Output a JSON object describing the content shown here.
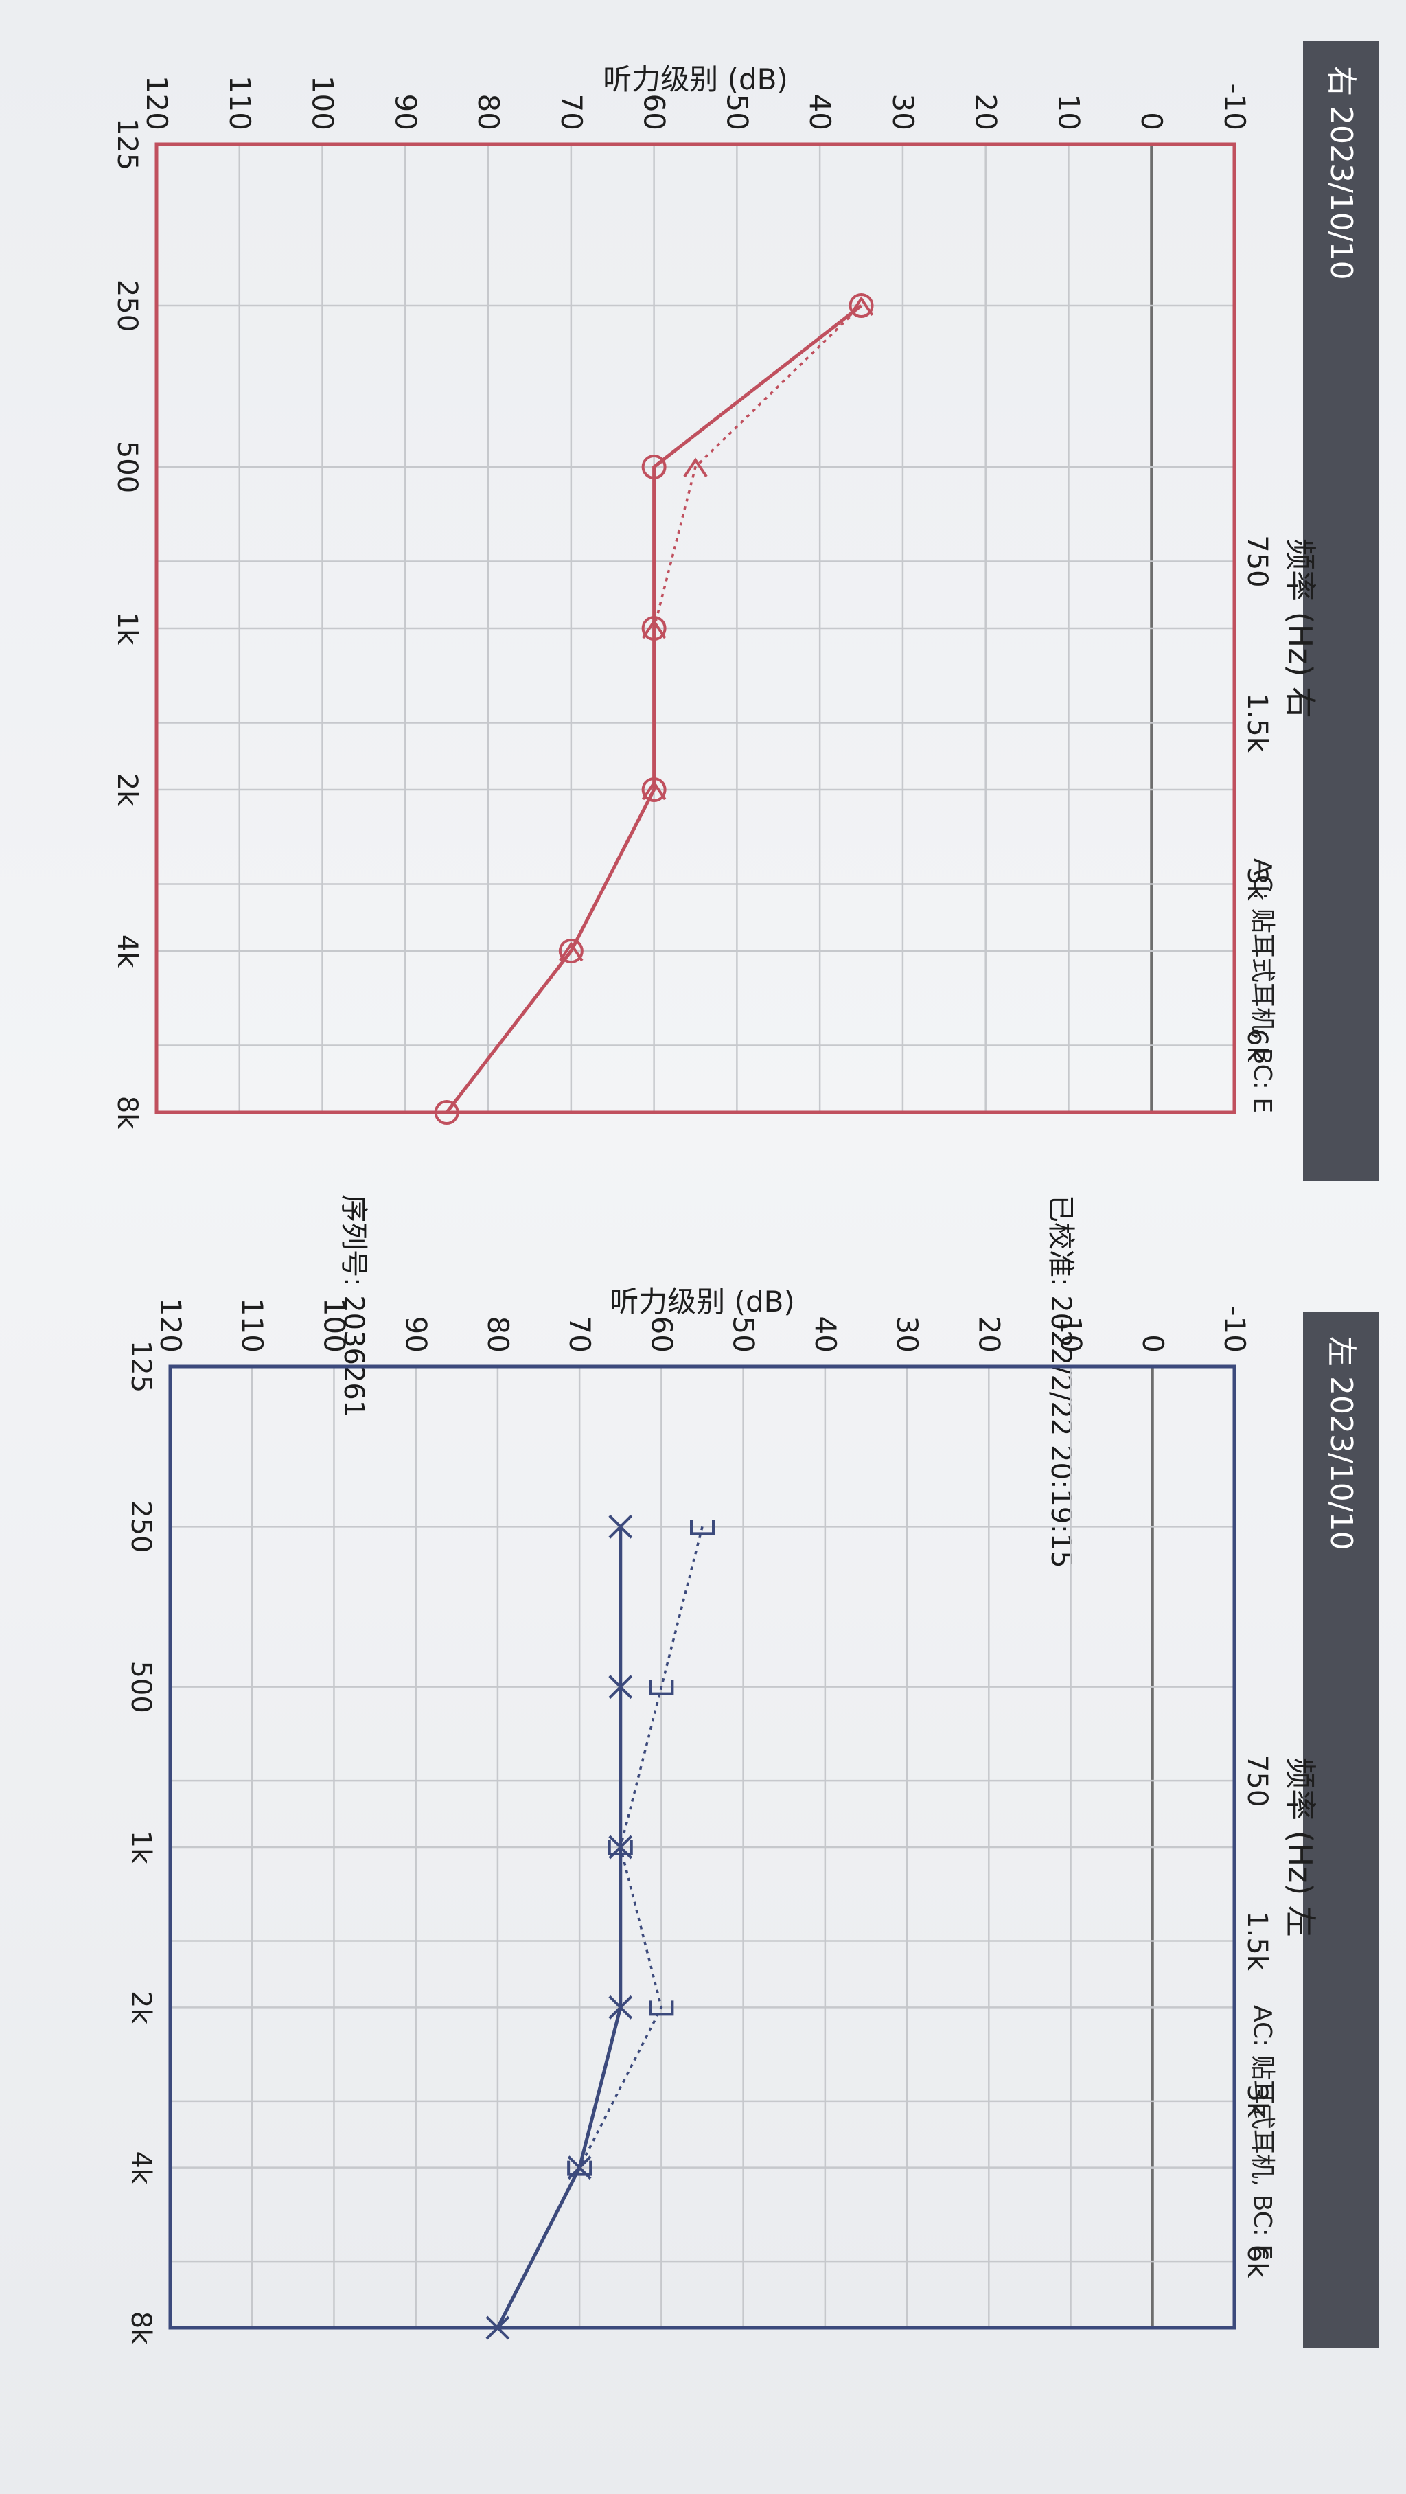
{
  "right_panel": {
    "header": "右 2023/10/10",
    "ac_note": "AC: 贴耳式耳机, BC: E",
    "calibrated": "已校准: 2022/2/22 20:19:15",
    "serial": "序列号: 2036261"
  },
  "left_panel": {
    "header": "左 2023/10/10",
    "ac_note": "AC: 贴耳式耳机, BC: E"
  },
  "colors": {
    "right_ear": "#c0505e",
    "left_ear": "#3c4a7c",
    "grid": "#c6c8cc",
    "header_bg": "#4c4f58"
  },
  "chart_data": [
    {
      "type": "line",
      "ear": "right",
      "ylabel": "听力级别 (dB)",
      "xlabel": "频率 (Hz) 右",
      "x_ticks_top": [
        "125",
        "250",
        "500",
        "1k",
        "2k",
        "4k",
        "8k"
      ],
      "x_ticks_bottom": [
        "750",
        "1.5k",
        "3k",
        "6k"
      ],
      "y_ticks": [
        "-10",
        "0",
        "10",
        "20",
        "30",
        "40",
        "50",
        "60",
        "70",
        "80",
        "90",
        "100",
        "110",
        "120"
      ],
      "ylim": [
        120,
        -10
      ],
      "y_reversed": true,
      "grid": true,
      "series": [
        {
          "marker": "circle",
          "line": "solid",
          "x": [
            "250",
            "500",
            "1k",
            "2k",
            "4k",
            "8k"
          ],
          "values": [
            35,
            60,
            60,
            60,
            70,
            85
          ]
        },
        {
          "marker": "<",
          "line": "dotted",
          "x": [
            "250",
            "500",
            "1k",
            "2k",
            "4k"
          ],
          "values": [
            35,
            55,
            60,
            60,
            70
          ]
        }
      ]
    },
    {
      "type": "line",
      "ear": "left",
      "ylabel": "听力级别 (dB)",
      "xlabel": "频率 (Hz) 左",
      "x_ticks_top": [
        "125",
        "250",
        "500",
        "1k",
        "2k",
        "4k",
        "8k"
      ],
      "x_ticks_bottom": [
        "750",
        "1.5k",
        "3k",
        "6k"
      ],
      "y_ticks": [
        "-10",
        "0",
        "10",
        "20",
        "30",
        "40",
        "50",
        "60",
        "70",
        "80",
        "90",
        "100",
        "110",
        "120"
      ],
      "ylim": [
        120,
        -10
      ],
      "y_reversed": true,
      "grid": true,
      "series": [
        {
          "marker": "x",
          "line": "solid",
          "x": [
            "250",
            "500",
            "1k",
            "2k",
            "4k",
            "8k"
          ],
          "values": [
            65,
            65,
            65,
            65,
            70,
            80
          ]
        },
        {
          "marker": "]",
          "line": "dotted",
          "x": [
            "250",
            "500",
            "1k",
            "2k",
            "4k"
          ],
          "values": [
            55,
            60,
            65,
            60,
            70
          ]
        }
      ]
    }
  ]
}
